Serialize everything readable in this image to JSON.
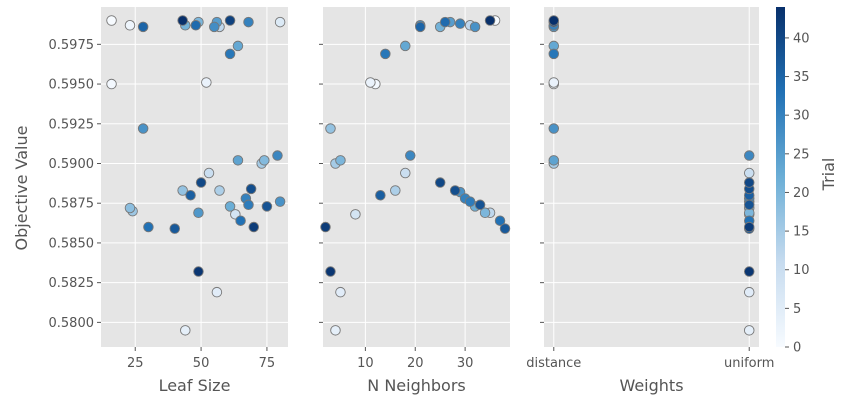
{
  "chart_data": {
    "type": "scatter",
    "ylabel": "Objective Value",
    "y_ticks": [
      "0.5800",
      "0.5825",
      "0.5850",
      "0.5875",
      "0.5900",
      "0.5925",
      "0.5950",
      "0.5975"
    ],
    "ylim": [
      0.57845,
      0.59985
    ],
    "grid": true,
    "colorbar": {
      "label": "Trial",
      "range": [
        0,
        44
      ],
      "ticks": [
        "0",
        "5",
        "10",
        "15",
        "20",
        "25",
        "30",
        "35",
        "40"
      ],
      "colors": [
        "#f7fbff",
        "#c6dbef",
        "#6baed6",
        "#2171b5",
        "#08306b"
      ]
    },
    "panels": [
      {
        "xlabel": "Leaf Size",
        "xlim": [
          12,
          83
        ],
        "x_ticks": [
          {
            "value": 25,
            "label": "25"
          },
          {
            "value": 50,
            "label": "50"
          },
          {
            "value": 75,
            "label": "75"
          }
        ],
        "points": [
          {
            "x": 16,
            "y": 0.599,
            "trial": 0
          },
          {
            "x": 16,
            "y": 0.595,
            "trial": 1
          },
          {
            "x": 23,
            "y": 0.5987,
            "trial": 2
          },
          {
            "x": 23,
            "y": 0.5872,
            "trial": 18
          },
          {
            "x": 24,
            "y": 0.587,
            "trial": 16
          },
          {
            "x": 28,
            "y": 0.5986,
            "trial": 35
          },
          {
            "x": 28,
            "y": 0.5922,
            "trial": 27
          },
          {
            "x": 30,
            "y": 0.586,
            "trial": 33
          },
          {
            "x": 40,
            "y": 0.5859,
            "trial": 37
          },
          {
            "x": 43,
            "y": 0.599,
            "trial": 44
          },
          {
            "x": 43,
            "y": 0.5883,
            "trial": 17
          },
          {
            "x": 44,
            "y": 0.5987,
            "trial": 21
          },
          {
            "x": 44,
            "y": 0.5795,
            "trial": 4
          },
          {
            "x": 46,
            "y": 0.588,
            "trial": 36
          },
          {
            "x": 48,
            "y": 0.5987,
            "trial": 34
          },
          {
            "x": 49,
            "y": 0.5989,
            "trial": 20
          },
          {
            "x": 49,
            "y": 0.5869,
            "trial": 26
          },
          {
            "x": 50,
            "y": 0.5888,
            "trial": 40
          },
          {
            "x": 49,
            "y": 0.5832,
            "trial": 43
          },
          {
            "x": 52,
            "y": 0.5951,
            "trial": 3
          },
          {
            "x": 53,
            "y": 0.5894,
            "trial": 10
          },
          {
            "x": 55,
            "y": 0.5986,
            "trial": 28
          },
          {
            "x": 56,
            "y": 0.5989,
            "trial": 25
          },
          {
            "x": 57,
            "y": 0.5986,
            "trial": 12
          },
          {
            "x": 57,
            "y": 0.5883,
            "trial": 14
          },
          {
            "x": 56,
            "y": 0.5819,
            "trial": 5
          },
          {
            "x": 61,
            "y": 0.599,
            "trial": 41
          },
          {
            "x": 61,
            "y": 0.5969,
            "trial": 32
          },
          {
            "x": 61,
            "y": 0.5873,
            "trial": 22
          },
          {
            "x": 63,
            "y": 0.5868,
            "trial": 8
          },
          {
            "x": 64,
            "y": 0.5974,
            "trial": 23
          },
          {
            "x": 64,
            "y": 0.5902,
            "trial": 24
          },
          {
            "x": 65,
            "y": 0.5864,
            "trial": 33
          },
          {
            "x": 67,
            "y": 0.5878,
            "trial": 30
          },
          {
            "x": 68,
            "y": 0.5989,
            "trial": 30
          },
          {
            "x": 68,
            "y": 0.5874,
            "trial": 31
          },
          {
            "x": 69,
            "y": 0.5884,
            "trial": 39
          },
          {
            "x": 70,
            "y": 0.586,
            "trial": 42
          },
          {
            "x": 73,
            "y": 0.59,
            "trial": 15
          },
          {
            "x": 74,
            "y": 0.5902,
            "trial": 19
          },
          {
            "x": 75,
            "y": 0.5873,
            "trial": 38
          },
          {
            "x": 79,
            "y": 0.5905,
            "trial": 29
          },
          {
            "x": 80,
            "y": 0.5989,
            "trial": 6
          },
          {
            "x": 80,
            "y": 0.5876,
            "trial": 27
          }
        ]
      },
      {
        "xlabel": "N Neighbors",
        "xlim": [
          1.5,
          39
        ],
        "x_ticks": [
          {
            "value": 10,
            "label": "10"
          },
          {
            "value": 20,
            "label": "20"
          },
          {
            "value": 30,
            "label": "30"
          }
        ],
        "points": [
          {
            "x": 2,
            "y": 0.586,
            "trial": 42
          },
          {
            "x": 3,
            "y": 0.5922,
            "trial": 17
          },
          {
            "x": 3,
            "y": 0.5832,
            "trial": 43
          },
          {
            "x": 4,
            "y": 0.59,
            "trial": 15
          },
          {
            "x": 4,
            "y": 0.5795,
            "trial": 4
          },
          {
            "x": 5,
            "y": 0.5902,
            "trial": 20
          },
          {
            "x": 5,
            "y": 0.5819,
            "trial": 5
          },
          {
            "x": 8,
            "y": 0.5868,
            "trial": 8
          },
          {
            "x": 11,
            "y": 0.5951,
            "trial": 3
          },
          {
            "x": 12,
            "y": 0.595,
            "trial": 1
          },
          {
            "x": 13,
            "y": 0.588,
            "trial": 36
          },
          {
            "x": 14,
            "y": 0.5969,
            "trial": 32
          },
          {
            "x": 16,
            "y": 0.5883,
            "trial": 14
          },
          {
            "x": 18,
            "y": 0.5974,
            "trial": 23
          },
          {
            "x": 18,
            "y": 0.5894,
            "trial": 10
          },
          {
            "x": 19,
            "y": 0.5905,
            "trial": 29
          },
          {
            "x": 21,
            "y": 0.5987,
            "trial": 28
          },
          {
            "x": 21,
            "y": 0.5986,
            "trial": 35
          },
          {
            "x": 25,
            "y": 0.5986,
            "trial": 21
          },
          {
            "x": 25,
            "y": 0.5888,
            "trial": 40
          },
          {
            "x": 26,
            "y": 0.5989,
            "trial": 34
          },
          {
            "x": 27,
            "y": 0.5989,
            "trial": 25
          },
          {
            "x": 28,
            "y": 0.5883,
            "trial": 39
          },
          {
            "x": 29,
            "y": 0.5988,
            "trial": 30
          },
          {
            "x": 29,
            "y": 0.5882,
            "trial": 27
          },
          {
            "x": 30,
            "y": 0.5878,
            "trial": 30
          },
          {
            "x": 31,
            "y": 0.5987,
            "trial": 12
          },
          {
            "x": 31,
            "y": 0.5876,
            "trial": 31
          },
          {
            "x": 32,
            "y": 0.5986,
            "trial": 27
          },
          {
            "x": 32,
            "y": 0.5873,
            "trial": 22
          },
          {
            "x": 33,
            "y": 0.5874,
            "trial": 38
          },
          {
            "x": 34,
            "y": 0.5869,
            "trial": 20
          },
          {
            "x": 35,
            "y": 0.599,
            "trial": 44
          },
          {
            "x": 35,
            "y": 0.5869,
            "trial": 12
          },
          {
            "x": 36,
            "y": 0.599,
            "trial": 0
          },
          {
            "x": 37,
            "y": 0.5864,
            "trial": 33
          },
          {
            "x": 38,
            "y": 0.5859,
            "trial": 37
          }
        ]
      },
      {
        "xlabel": "Weights",
        "xlim": [
          -0.05,
          1.05
        ],
        "x_ticks": [
          {
            "value": 0,
            "label": "distance"
          },
          {
            "value": 1,
            "label": "uniform"
          }
        ],
        "points": [
          {
            "x": 0,
            "y": 0.599,
            "trial": 44
          },
          {
            "x": 0,
            "y": 0.5989,
            "trial": 41
          },
          {
            "x": 0,
            "y": 0.5987,
            "trial": 30
          },
          {
            "x": 0,
            "y": 0.5986,
            "trial": 26
          },
          {
            "x": 0,
            "y": 0.5974,
            "trial": 23
          },
          {
            "x": 0,
            "y": 0.5969,
            "trial": 32
          },
          {
            "x": 0,
            "y": 0.5951,
            "trial": 3
          },
          {
            "x": 0,
            "y": 0.595,
            "trial": 1
          },
          {
            "x": 0,
            "y": 0.5922,
            "trial": 27
          },
          {
            "x": 0,
            "y": 0.5902,
            "trial": 24
          },
          {
            "x": 0,
            "y": 0.59,
            "trial": 15
          },
          {
            "x": 1,
            "y": 0.5905,
            "trial": 29
          },
          {
            "x": 1,
            "y": 0.5894,
            "trial": 10
          },
          {
            "x": 1,
            "y": 0.5888,
            "trial": 40
          },
          {
            "x": 1,
            "y": 0.5884,
            "trial": 39
          },
          {
            "x": 1,
            "y": 0.588,
            "trial": 36
          },
          {
            "x": 1,
            "y": 0.5878,
            "trial": 30
          },
          {
            "x": 1,
            "y": 0.5876,
            "trial": 27
          },
          {
            "x": 1,
            "y": 0.5874,
            "trial": 38
          },
          {
            "x": 1,
            "y": 0.5872,
            "trial": 18
          },
          {
            "x": 1,
            "y": 0.5869,
            "trial": 20
          },
          {
            "x": 1,
            "y": 0.5868,
            "trial": 8
          },
          {
            "x": 1,
            "y": 0.5864,
            "trial": 33
          },
          {
            "x": 1,
            "y": 0.586,
            "trial": 42
          },
          {
            "x": 1,
            "y": 0.5859,
            "trial": 37
          },
          {
            "x": 1,
            "y": 0.5832,
            "trial": 43
          },
          {
            "x": 1,
            "y": 0.5819,
            "trial": 5
          },
          {
            "x": 1,
            "y": 0.5795,
            "trial": 4
          }
        ]
      }
    ]
  }
}
